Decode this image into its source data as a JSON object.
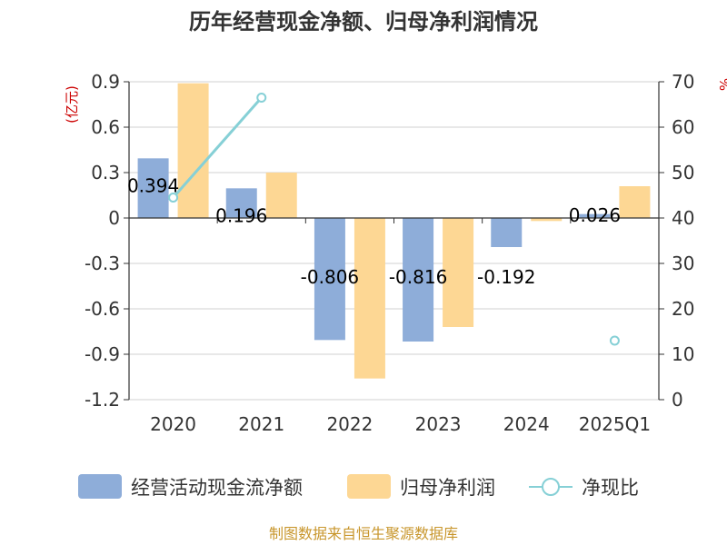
{
  "chart_data": {
    "type": "bar",
    "title": "历年经营现金净额、归母净利润情况",
    "categories": [
      "2020",
      "2021",
      "2022",
      "2023",
      "2024",
      "2025Q1"
    ],
    "left_axis": {
      "unit": "(亿元)",
      "min": -1.2,
      "max": 0.9,
      "ticks": [
        0.9,
        0.6,
        0.3,
        0,
        -0.3,
        -0.6,
        -0.9,
        -1.2
      ],
      "tick_labels": [
        "0.9",
        "0.6",
        "0.3",
        "0",
        "-0.3",
        "-0.6",
        "-0.9",
        "-1.2"
      ]
    },
    "right_axis": {
      "unit": "%",
      "min": 0,
      "max": 70,
      "ticks": [
        70,
        60,
        50,
        40,
        30,
        20,
        10,
        0
      ],
      "tick_labels": [
        "70",
        "60",
        "50",
        "40",
        "30",
        "20",
        "10",
        "0"
      ]
    },
    "series": [
      {
        "name": "经营活动现金流净额",
        "type": "bar",
        "axis": "left",
        "color": "#8eadd9",
        "values": [
          0.394,
          0.196,
          -0.806,
          -0.816,
          -0.192,
          0.026
        ],
        "labels": [
          "0.394",
          "0.196",
          "-0.806",
          "-0.816",
          "-0.192",
          "0.026"
        ]
      },
      {
        "name": "归母净利润",
        "type": "bar",
        "axis": "left",
        "color": "#fdd794",
        "values": [
          0.89,
          0.3,
          -1.06,
          -0.72,
          -0.02,
          0.21
        ]
      },
      {
        "name": "净现比",
        "type": "line",
        "axis": "right",
        "color": "#86d0d6",
        "values": [
          44.5,
          66.5,
          null,
          null,
          null,
          13.0
        ]
      }
    ]
  },
  "footer": {
    "source": "制图数据来自恒生聚源数据库"
  }
}
